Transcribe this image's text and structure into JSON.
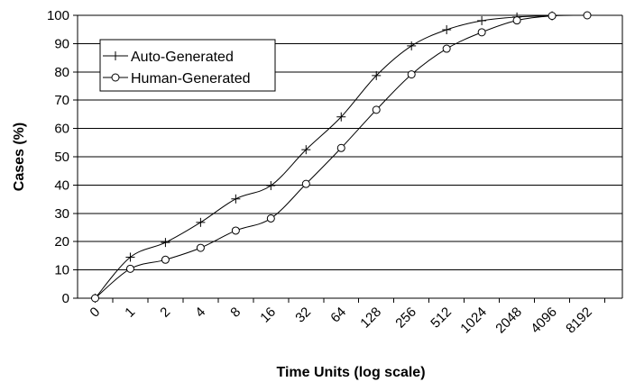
{
  "chart_data": {
    "type": "line",
    "xlabel": "Time Units (log scale)",
    "ylabel": "Cases (%)",
    "ylim": [
      0,
      100
    ],
    "yticks": [
      "0",
      "10",
      "20",
      "30",
      "40",
      "50",
      "60",
      "70",
      "80",
      "90",
      "100"
    ],
    "categories": [
      "0",
      "1",
      "2",
      "4",
      "8",
      "16",
      "32",
      "64",
      "128",
      "256",
      "512",
      "1024",
      "2048",
      "4096",
      "8192"
    ],
    "grid": "horizontal",
    "legend_position": "upper-left",
    "series": [
      {
        "name": "Auto-Generated",
        "marker": "plus",
        "x": [
          0.5,
          1.5,
          2.5,
          3.5,
          4.5,
          5.5,
          6.5,
          7.5,
          8.5,
          9.5,
          10.5,
          11.5,
          12.5,
          13.5
        ],
        "values": [
          0,
          14.5,
          19.7,
          26.8,
          35.1,
          39.8,
          52.5,
          64.1,
          78.7,
          89.2,
          94.9,
          98.1,
          99.4,
          99.8
        ]
      },
      {
        "name": "Human-Generated",
        "marker": "circle",
        "x": [
          0.5,
          1.5,
          2.5,
          3.5,
          4.5,
          5.5,
          6.5,
          7.5,
          8.5,
          9.5,
          10.5,
          11.5,
          12.5,
          13.5,
          14.5
        ],
        "values": [
          0,
          10.4,
          13.6,
          17.8,
          23.9,
          28.2,
          40.4,
          53.1,
          66.6,
          79.1,
          88.2,
          94.0,
          98.2,
          99.8,
          100
        ]
      }
    ],
    "colors": {
      "line": "#000000",
      "grid": "#000000",
      "background": "#ffffff"
    }
  }
}
